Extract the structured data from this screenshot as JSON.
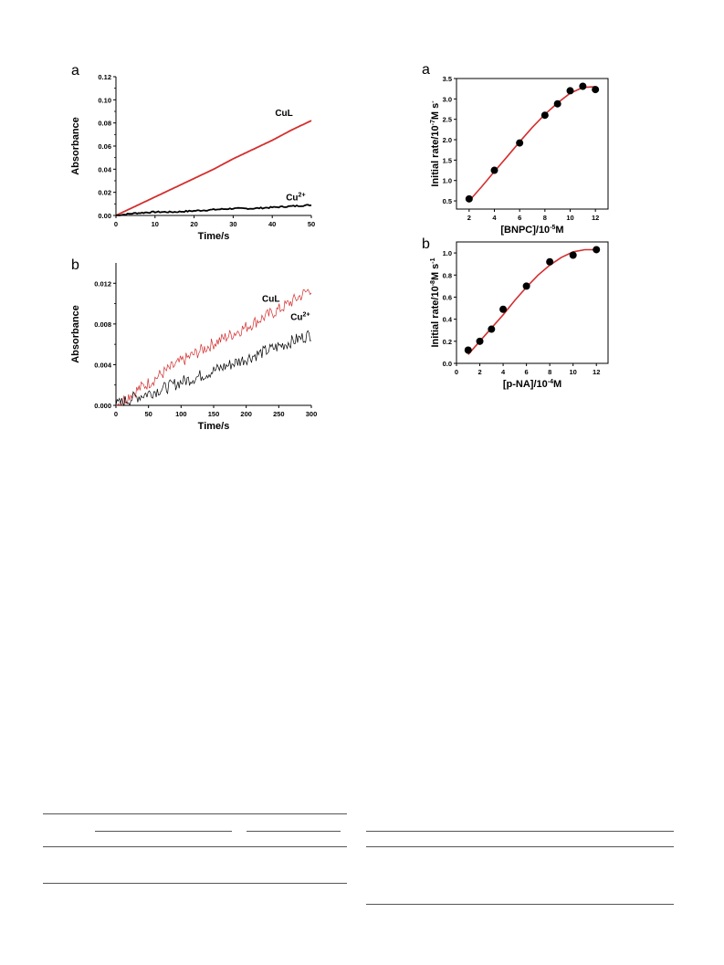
{
  "chart_data": [
    {
      "panel": "a",
      "type": "line",
      "xlabel": "Time/s",
      "ylabel": "Absorbance",
      "xlim": [
        0,
        50
      ],
      "ylim": [
        0,
        0.12
      ],
      "xticks": [
        "0",
        "10",
        "20",
        "30",
        "40",
        "50"
      ],
      "yticks": [
        "0.00",
        "0.02",
        "0.04",
        "0.06",
        "0.08",
        "0.10",
        "0.12"
      ],
      "series": [
        {
          "name": "CuL",
          "color": "#d32f2f",
          "x": [
            0,
            5,
            10,
            15,
            20,
            25,
            30,
            35,
            40,
            45,
            50
          ],
          "y": [
            0.0,
            0.008,
            0.016,
            0.024,
            0.032,
            0.04,
            0.049,
            0.057,
            0.065,
            0.074,
            0.082
          ]
        },
        {
          "name": "Cu2+",
          "color": "#000000",
          "x": [
            0,
            5,
            10,
            15,
            20,
            25,
            30,
            35,
            40,
            45,
            50
          ],
          "y": [
            0.0,
            0.002,
            0.003,
            0.003,
            0.004,
            0.005,
            0.006,
            0.006,
            0.007,
            0.008,
            0.009
          ]
        }
      ],
      "annotations": [
        {
          "text": "CuL",
          "x": 43,
          "y": 0.086
        },
        {
          "text": "Cu",
          "sup": "2+",
          "x": 46,
          "y": 0.013
        }
      ]
    },
    {
      "panel": "b",
      "type": "line",
      "xlabel": "Time/s",
      "ylabel": "Absorbance",
      "xlim": [
        0,
        300
      ],
      "ylim": [
        0,
        0.014
      ],
      "xticks": [
        "0",
        "50",
        "100",
        "150",
        "200",
        "250",
        "300"
      ],
      "yticks": [
        "0.000",
        "0.004",
        "0.008",
        "0.012"
      ],
      "series": [
        {
          "name": "CuL",
          "color": "#d32f2f",
          "x": [
            0,
            25,
            50,
            75,
            100,
            125,
            150,
            175,
            200,
            225,
            250,
            275,
            300
          ],
          "y": [
            0.0,
            0.0012,
            0.0022,
            0.0033,
            0.0043,
            0.0052,
            0.0061,
            0.0069,
            0.0077,
            0.0086,
            0.0094,
            0.0104,
            0.0115
          ]
        },
        {
          "name": "Cu2+",
          "color": "#000000",
          "x": [
            0,
            25,
            50,
            75,
            100,
            125,
            150,
            175,
            200,
            225,
            250,
            275,
            300
          ],
          "y": [
            0.0,
            0.0007,
            0.0012,
            0.0017,
            0.0023,
            0.0028,
            0.0034,
            0.004,
            0.0046,
            0.0052,
            0.0058,
            0.0064,
            0.007
          ]
        }
      ],
      "annotations": [
        {
          "text": "CuL",
          "x": 238,
          "y": 0.0102
        },
        {
          "text": "Cu",
          "sup": "2+",
          "x": 283,
          "y": 0.0084
        }
      ]
    },
    {
      "panel": "a",
      "type": "scatter",
      "xlabel": "[BNPC]/10",
      "xlabel_sup": "-5",
      "xlabel_end": "M",
      "ylabel": "Initial rate/10",
      "ylabel_sup": "-7",
      "ylabel_end": "M s",
      "ylabel_end_sup": "-",
      "xlim": [
        1,
        13
      ],
      "ylim": [
        0.3,
        3.5
      ],
      "xticks": [
        "2",
        "4",
        "6",
        "8",
        "10",
        "12"
      ],
      "yticks": [
        "0.5",
        "1.0",
        "1.5",
        "2.0",
        "2.5",
        "3.0",
        "3.5"
      ],
      "series": [
        {
          "name": "",
          "x": [
            2,
            4,
            6,
            8,
            9,
            10,
            11,
            12
          ],
          "y": [
            0.55,
            1.25,
            1.92,
            2.6,
            2.88,
            3.2,
            3.31,
            3.23
          ]
        }
      ],
      "fit": {
        "color": "#d32f2f",
        "x": [
          2,
          3,
          4,
          5,
          6,
          7,
          8,
          9,
          10,
          11,
          12
        ],
        "y": [
          0.5,
          0.85,
          1.22,
          1.58,
          1.95,
          2.3,
          2.62,
          2.9,
          3.14,
          3.28,
          3.3
        ]
      }
    },
    {
      "panel": "b",
      "type": "scatter",
      "xlabel": "[p-NA]/10",
      "xlabel_sup": "-4",
      "xlabel_end": "M",
      "ylabel": "Initial rate/10",
      "ylabel_sup": "-8",
      "ylabel_end": "M s",
      "ylabel_end_sup": "-1",
      "xlim": [
        0,
        13
      ],
      "ylim": [
        0,
        1.1
      ],
      "xticks": [
        "0",
        "2",
        "4",
        "6",
        "8",
        "10",
        "12"
      ],
      "yticks": [
        "0.0",
        "0.2",
        "0.4",
        "0.6",
        "0.8",
        "1.0"
      ],
      "series": [
        {
          "name": "",
          "x": [
            1,
            2,
            3,
            4,
            6,
            8,
            10,
            12
          ],
          "y": [
            0.12,
            0.2,
            0.31,
            0.49,
            0.7,
            0.92,
            0.98,
            1.03
          ]
        }
      ],
      "fit": {
        "color": "#d32f2f",
        "x": [
          1,
          2,
          3,
          4,
          5,
          6,
          7,
          8,
          9,
          10,
          11,
          12
        ],
        "y": [
          0.08,
          0.2,
          0.32,
          0.44,
          0.57,
          0.69,
          0.8,
          0.89,
          0.96,
          1.01,
          1.03,
          1.03
        ]
      }
    }
  ]
}
